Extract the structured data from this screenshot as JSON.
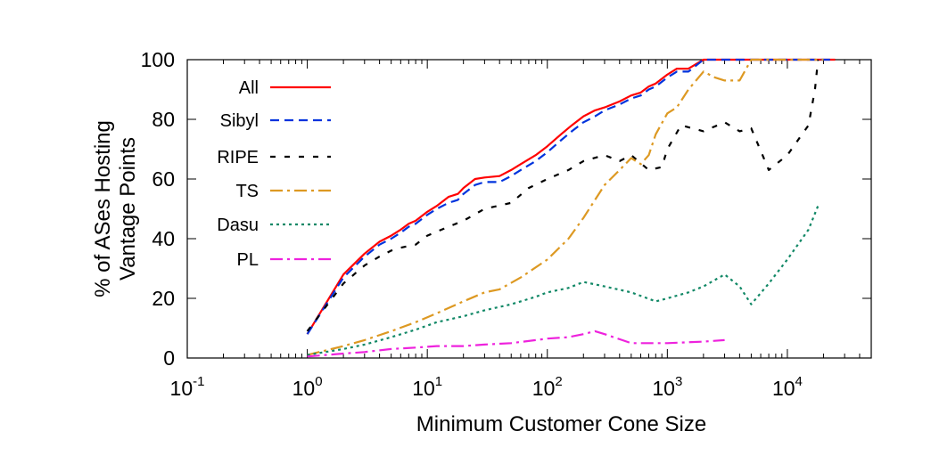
{
  "chart_data": {
    "type": "line",
    "title": "",
    "xlabel": "Minimum Customer Cone Size",
    "ylabel": [
      "% of ASes Hosting",
      "Vantage Points"
    ],
    "x_scale": "log",
    "xlim": [
      0.1,
      50000
    ],
    "ylim": [
      0,
      100
    ],
    "x_ticks": [
      {
        "base": "10",
        "exp": "-1",
        "value": 0.1
      },
      {
        "base": "10",
        "exp": "0",
        "value": 1
      },
      {
        "base": "10",
        "exp": "1",
        "value": 10
      },
      {
        "base": "10",
        "exp": "2",
        "value": 100
      },
      {
        "base": "10",
        "exp": "3",
        "value": 1000
      },
      {
        "base": "10",
        "exp": "4",
        "value": 10000
      }
    ],
    "y_ticks": [
      "0",
      "20",
      "40",
      "60",
      "80",
      "100"
    ],
    "grid": false,
    "legend_position": "top-left",
    "series": [
      {
        "name": "All",
        "color": "#ff0000",
        "dash": "solid",
        "points": [
          [
            1,
            8
          ],
          [
            2,
            28
          ],
          [
            3,
            35
          ],
          [
            4,
            39
          ],
          [
            5,
            41
          ],
          [
            6,
            43
          ],
          [
            7,
            45
          ],
          [
            8,
            46
          ],
          [
            10,
            49
          ],
          [
            12,
            51
          ],
          [
            15,
            54
          ],
          [
            18,
            55
          ],
          [
            20,
            57
          ],
          [
            25,
            60
          ],
          [
            30,
            60.5
          ],
          [
            40,
            61
          ],
          [
            50,
            63
          ],
          [
            60,
            65
          ],
          [
            80,
            68
          ],
          [
            100,
            71
          ],
          [
            130,
            75
          ],
          [
            160,
            78
          ],
          [
            200,
            81
          ],
          [
            250,
            83
          ],
          [
            300,
            84
          ],
          [
            400,
            86
          ],
          [
            500,
            88
          ],
          [
            600,
            89
          ],
          [
            700,
            91
          ],
          [
            800,
            92
          ],
          [
            1000,
            95
          ],
          [
            1200,
            97
          ],
          [
            1500,
            97
          ],
          [
            2000,
            100
          ],
          [
            5000,
            100
          ],
          [
            10000,
            100
          ],
          [
            25000,
            100
          ]
        ]
      },
      {
        "name": "Sibyl",
        "color": "#0033dd",
        "dash": "dashed",
        "points": [
          [
            1,
            8
          ],
          [
            2,
            27
          ],
          [
            3,
            34
          ],
          [
            4,
            38
          ],
          [
            5,
            40
          ],
          [
            6,
            42
          ],
          [
            7,
            44
          ],
          [
            8,
            45
          ],
          [
            10,
            48
          ],
          [
            12,
            50
          ],
          [
            15,
            52
          ],
          [
            18,
            53
          ],
          [
            20,
            55
          ],
          [
            25,
            58
          ],
          [
            30,
            59
          ],
          [
            40,
            59
          ],
          [
            50,
            61
          ],
          [
            60,
            63
          ],
          [
            80,
            66
          ],
          [
            100,
            69
          ],
          [
            130,
            73
          ],
          [
            160,
            76
          ],
          [
            200,
            79
          ],
          [
            250,
            81
          ],
          [
            300,
            83
          ],
          [
            400,
            85
          ],
          [
            500,
            87
          ],
          [
            600,
            88
          ],
          [
            700,
            90
          ],
          [
            800,
            91
          ],
          [
            1000,
            94
          ],
          [
            1200,
            96
          ],
          [
            1500,
            96
          ],
          [
            2000,
            100
          ],
          [
            5000,
            100
          ],
          [
            10000,
            100
          ],
          [
            25000,
            100
          ]
        ]
      },
      {
        "name": "RIPE",
        "color": "#000000",
        "dash": "loose",
        "points": [
          [
            1,
            9
          ],
          [
            2,
            25
          ],
          [
            3,
            31
          ],
          [
            4,
            34
          ],
          [
            5,
            36
          ],
          [
            6,
            37
          ],
          [
            8,
            38
          ],
          [
            10,
            41
          ],
          [
            15,
            44
          ],
          [
            20,
            46
          ],
          [
            30,
            50
          ],
          [
            50,
            52
          ],
          [
            70,
            57
          ],
          [
            100,
            60
          ],
          [
            150,
            63
          ],
          [
            200,
            66
          ],
          [
            300,
            68
          ],
          [
            400,
            66
          ],
          [
            500,
            68
          ],
          [
            700,
            63
          ],
          [
            900,
            64
          ],
          [
            1000,
            70
          ],
          [
            1300,
            78
          ],
          [
            2000,
            76
          ],
          [
            3000,
            79
          ],
          [
            4000,
            76
          ],
          [
            5000,
            77
          ],
          [
            7000,
            63
          ],
          [
            10000,
            68
          ],
          [
            15000,
            78
          ],
          [
            17000,
            90
          ],
          [
            18000,
            100
          ]
        ]
      },
      {
        "name": "TS",
        "color": "#dd9922",
        "dash": "dashdot",
        "points": [
          [
            1,
            1
          ],
          [
            2,
            4
          ],
          [
            3,
            6
          ],
          [
            5,
            9
          ],
          [
            8,
            12
          ],
          [
            12,
            15
          ],
          [
            20,
            19
          ],
          [
            30,
            22
          ],
          [
            40,
            23
          ],
          [
            60,
            27
          ],
          [
            100,
            33
          ],
          [
            150,
            40
          ],
          [
            200,
            47
          ],
          [
            300,
            58
          ],
          [
            400,
            63
          ],
          [
            500,
            67
          ],
          [
            600,
            65
          ],
          [
            700,
            68
          ],
          [
            800,
            75
          ],
          [
            1000,
            82
          ],
          [
            1200,
            84
          ],
          [
            1500,
            90
          ],
          [
            2000,
            96
          ],
          [
            2500,
            94
          ],
          [
            3000,
            93
          ],
          [
            4000,
            93
          ],
          [
            5000,
            100
          ],
          [
            10000,
            100
          ],
          [
            20000,
            100
          ]
        ]
      },
      {
        "name": "Dasu",
        "color": "#118866",
        "dash": "dotted",
        "points": [
          [
            1,
            1
          ],
          [
            2,
            3
          ],
          [
            3,
            4.5
          ],
          [
            5,
            7
          ],
          [
            8,
            9.5
          ],
          [
            12,
            12
          ],
          [
            20,
            14
          ],
          [
            30,
            16
          ],
          [
            50,
            18
          ],
          [
            80,
            20.5
          ],
          [
            100,
            22
          ],
          [
            150,
            23.5
          ],
          [
            200,
            25.5
          ],
          [
            300,
            24
          ],
          [
            500,
            22
          ],
          [
            800,
            19
          ],
          [
            1000,
            20
          ],
          [
            1500,
            22
          ],
          [
            2000,
            24
          ],
          [
            3000,
            28
          ],
          [
            4000,
            24
          ],
          [
            5000,
            18
          ],
          [
            7000,
            25
          ],
          [
            10000,
            33
          ],
          [
            15000,
            43
          ],
          [
            18000,
            51
          ]
        ]
      },
      {
        "name": "PL",
        "color": "#ee22dd",
        "dash": "dashdot",
        "points": [
          [
            1,
            0.5
          ],
          [
            2,
            1.5
          ],
          [
            3,
            2
          ],
          [
            5,
            3
          ],
          [
            8,
            3.5
          ],
          [
            12,
            4
          ],
          [
            20,
            4
          ],
          [
            30,
            4.5
          ],
          [
            50,
            5
          ],
          [
            80,
            6
          ],
          [
            100,
            6.5
          ],
          [
            150,
            7
          ],
          [
            200,
            8
          ],
          [
            250,
            9
          ],
          [
            300,
            8
          ],
          [
            500,
            5
          ],
          [
            700,
            5
          ],
          [
            1000,
            5
          ],
          [
            2000,
            5.5
          ],
          [
            3000,
            6
          ]
        ]
      }
    ]
  }
}
